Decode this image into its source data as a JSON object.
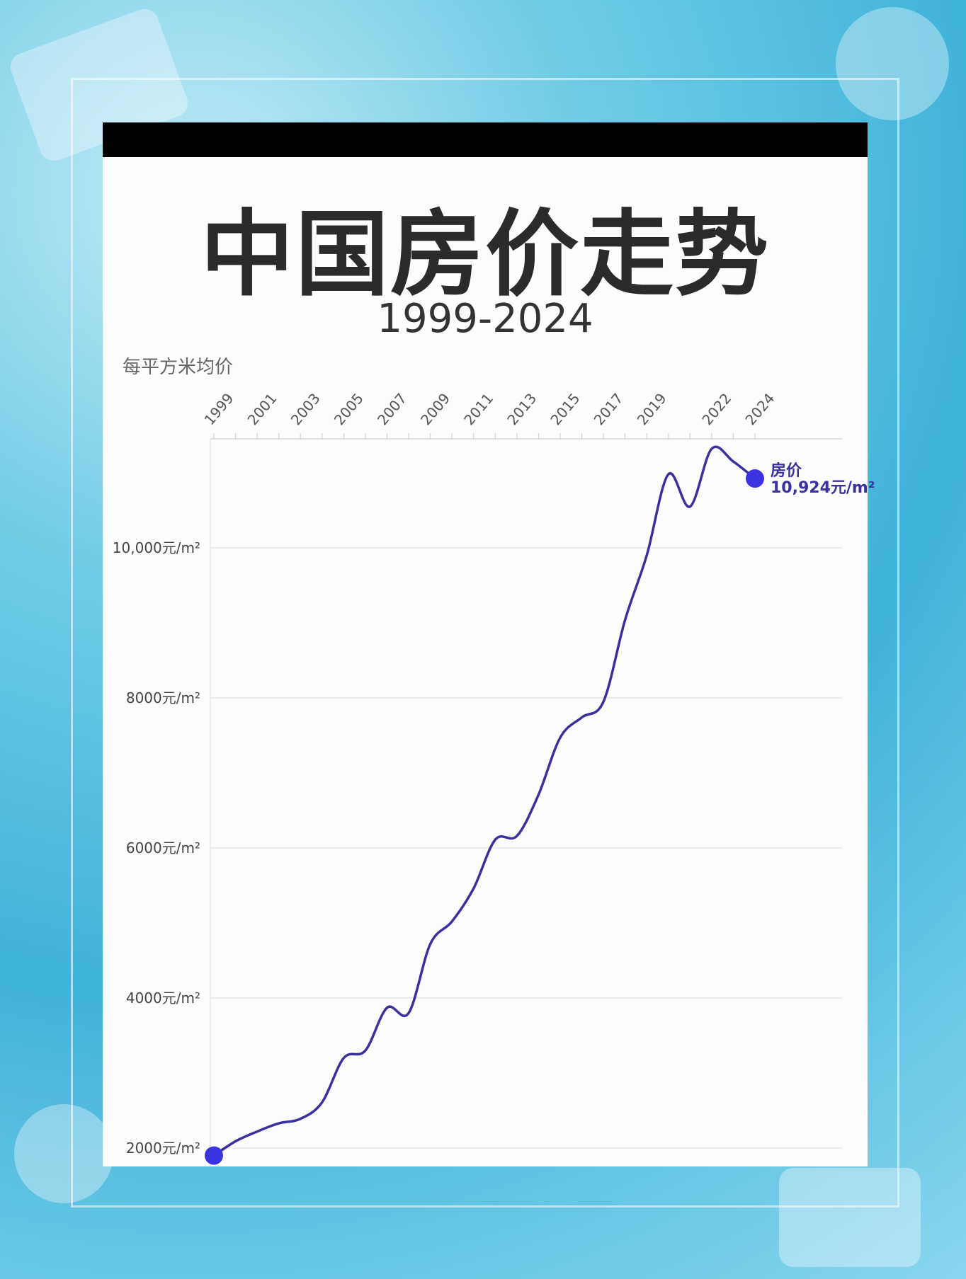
{
  "chart_data": {
    "type": "line",
    "title": "中国房价走势",
    "subtitle": "1999-2024",
    "ylabel": "每平方米均价",
    "xlabel": "",
    "x_tick_labels": [
      "1999",
      "2001",
      "2003",
      "2005",
      "2007",
      "2009",
      "2011",
      "2013",
      "2015",
      "2017",
      "2019",
      "2022",
      "2024"
    ],
    "y_tick_labels": [
      {
        "value": 2000,
        "label": "2000元/m²"
      },
      {
        "value": 4000,
        "label": "4000元/m²"
      },
      {
        "value": 6000,
        "label": "6000元/m²"
      },
      {
        "value": 8000,
        "label": "8000元/m²"
      },
      {
        "value": 10000,
        "label": "10,000元/m²"
      }
    ],
    "ylim": [
      1800,
      11450
    ],
    "xlim": [
      1999,
      2024
    ],
    "grid": true,
    "line_color": "#3a2f9e",
    "marker_color": "#3b33e0",
    "series": [
      {
        "name": "房价",
        "x": [
          1999,
          2000,
          2001,
          2002,
          2003,
          2004,
          2005,
          2006,
          2007,
          2008,
          2009,
          2010,
          2011,
          2012,
          2013,
          2014,
          2015,
          2016,
          2017,
          2018,
          2019,
          2020,
          2021,
          2022,
          2023,
          2024
        ],
        "values": [
          1900,
          2090,
          2220,
          2330,
          2390,
          2610,
          3200,
          3300,
          3870,
          3800,
          4720,
          5020,
          5460,
          6110,
          6160,
          6710,
          7470,
          7740,
          7950,
          9040,
          9900,
          10980,
          10550,
          11320,
          11150,
          10924
        ]
      }
    ],
    "end_annotation": {
      "name": "房价",
      "value_label": "10,924元/m²"
    }
  }
}
